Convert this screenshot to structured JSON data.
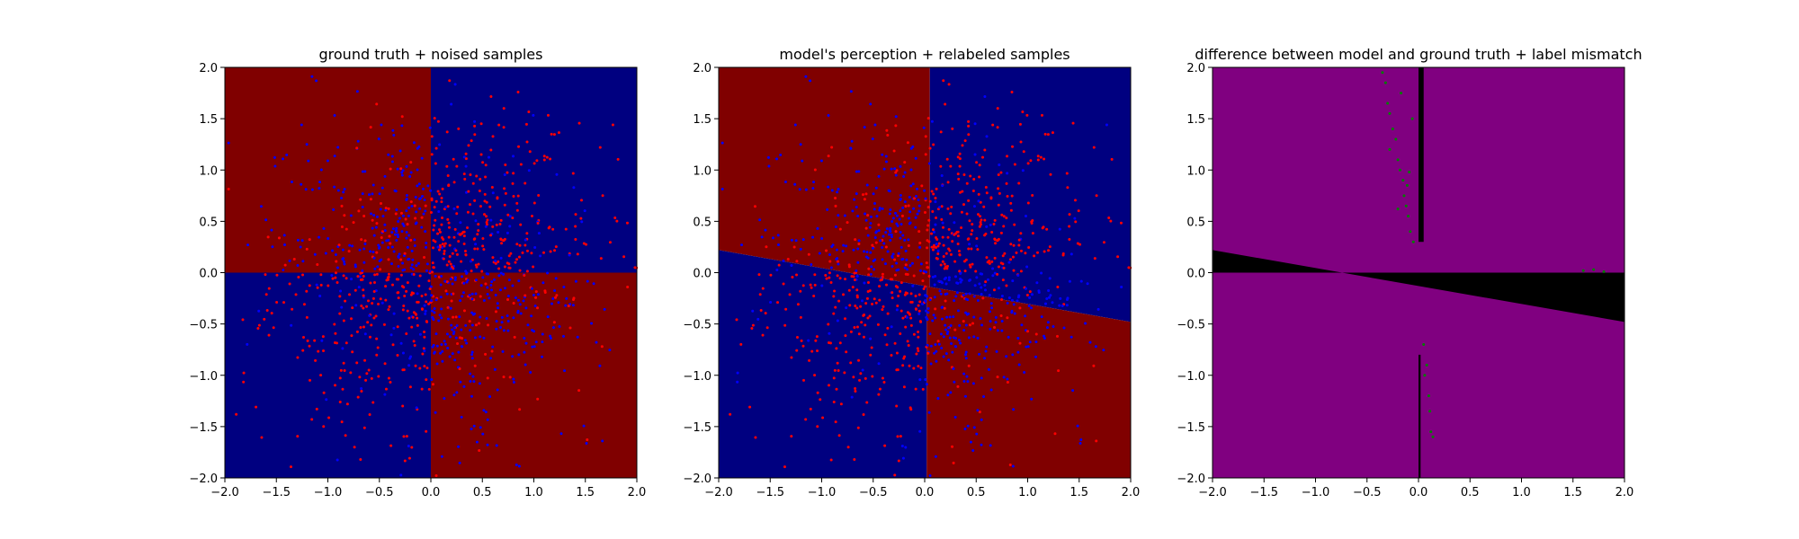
{
  "figure": {
    "background": "#ffffff"
  },
  "colors": {
    "region_red": "#800000",
    "region_blue": "#000080",
    "region_purple": "#800080",
    "region_black": "#000000",
    "point_red": "#ff0000",
    "point_blue": "#0000ff",
    "point_green": "#008000"
  },
  "chart_data": [
    {
      "type": "heatmap",
      "title": "ground truth + noised samples",
      "xlim": [
        -2.0,
        2.0
      ],
      "ylim": [
        -2.0,
        2.0
      ],
      "xticks": [
        "−2.0",
        "−1.5",
        "−1.0",
        "−0.5",
        "0.0",
        "0.5",
        "1.0",
        "1.5",
        "2.0"
      ],
      "yticks": [
        "−2.0",
        "−1.5",
        "−1.0",
        "−0.5",
        "0.0",
        "0.5",
        "1.0",
        "1.5",
        "2.0"
      ],
      "regions": "checkerboard: red where x*y<0, blue where x*y>0",
      "points": "scatter of red and blue samples, noisy labels (~1000 points)"
    },
    {
      "type": "heatmap",
      "title": "model's perception + relabeled samples",
      "xlim": [
        -2.0,
        2.0
      ],
      "ylim": [
        -2.0,
        2.0
      ],
      "xticks": [
        "−2.0",
        "−1.5",
        "−1.0",
        "−0.5",
        "0.0",
        "0.5",
        "1.0",
        "1.5",
        "2.0"
      ],
      "yticks": [
        "−2.0",
        "−1.5",
        "−1.0",
        "−0.5",
        "0.0",
        "0.5",
        "1.0",
        "1.5",
        "2.0"
      ],
      "boundaries": {
        "vertical_upper_x": 0.05,
        "vertical_lower_x": 0.02,
        "horizontal_line": [
          [
            -2.0,
            0.22
          ],
          [
            2.0,
            -0.48
          ]
        ]
      },
      "points": "scatter of red and blue relabeled samples (~1000 points)"
    },
    {
      "type": "heatmap",
      "title": "difference between model and ground truth + label mismatch",
      "xlim": [
        -2.0,
        2.0
      ],
      "ylim": [
        -2.0,
        2.0
      ],
      "xticks": [
        "−2.0",
        "−1.5",
        "−1.0",
        "−0.5",
        "0.0",
        "0.5",
        "1.0",
        "1.5",
        "2.0"
      ],
      "yticks": [
        "−2.0",
        "−1.5",
        "−1.0",
        "−0.5",
        "0.0",
        "0.5",
        "1.0",
        "1.5",
        "2.0"
      ],
      "regions": "purple = agreement, black = disagreement (wedges around y≈0 and strip near x≈0)",
      "mismatch_points": [
        [
          -0.35,
          1.95
        ],
        [
          -0.32,
          1.85
        ],
        [
          -0.3,
          1.65
        ],
        [
          -0.28,
          1.55
        ],
        [
          -0.25,
          1.4
        ],
        [
          -0.22,
          1.3
        ],
        [
          -0.2,
          1.1
        ],
        [
          -0.18,
          1.0
        ],
        [
          -0.15,
          0.9
        ],
        [
          -0.14,
          0.75
        ],
        [
          -0.12,
          0.65
        ],
        [
          -0.1,
          0.55
        ],
        [
          -0.08,
          0.4
        ],
        [
          -0.05,
          0.3
        ],
        [
          -0.28,
          1.2
        ],
        [
          -0.17,
          1.75
        ],
        [
          -0.11,
          0.85
        ],
        [
          -0.2,
          0.62
        ],
        [
          -0.06,
          1.5
        ],
        [
          -0.09,
          0.98
        ],
        [
          0.05,
          -0.7
        ],
        [
          0.08,
          -0.9
        ],
        [
          0.1,
          -1.2
        ],
        [
          0.12,
          -1.55
        ],
        [
          0.14,
          -1.6
        ],
        [
          0.06,
          -1.0
        ],
        [
          0.11,
          -1.35
        ],
        [
          1.6,
          0.02
        ],
        [
          1.7,
          0.03
        ],
        [
          1.8,
          0.01
        ]
      ]
    }
  ]
}
